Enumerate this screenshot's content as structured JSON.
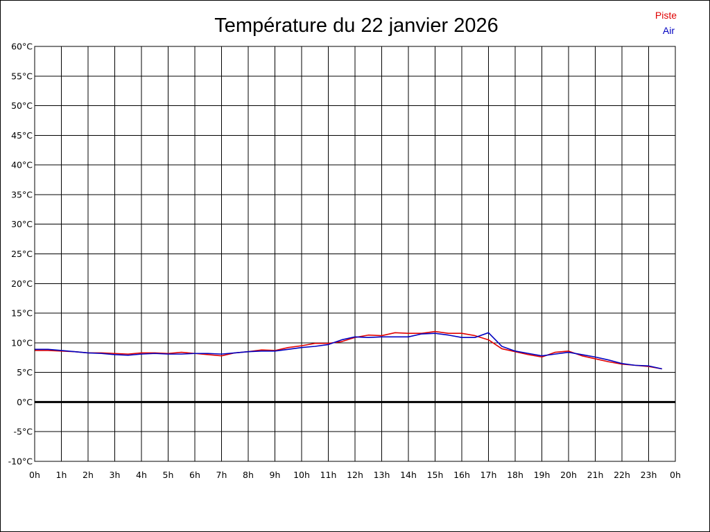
{
  "chart_data": {
    "type": "line",
    "title": "Température du 22 janvier 2026",
    "xlabel": "",
    "ylabel": "",
    "xlim": [
      0,
      24
    ],
    "ylim": [
      -10,
      60
    ],
    "x_ticks": [
      0,
      1,
      2,
      3,
      4,
      5,
      6,
      7,
      8,
      9,
      10,
      11,
      12,
      13,
      14,
      15,
      16,
      17,
      18,
      19,
      20,
      21,
      22,
      23,
      24
    ],
    "x_tick_labels": [
      "0h",
      "1h",
      "2h",
      "3h",
      "4h",
      "5h",
      "6h",
      "7h",
      "8h",
      "9h",
      "10h",
      "11h",
      "12h",
      "13h",
      "14h",
      "15h",
      "16h",
      "17h",
      "18h",
      "19h",
      "20h",
      "21h",
      "22h",
      "23h",
      "0h"
    ],
    "y_ticks": [
      -10,
      -5,
      0,
      5,
      10,
      15,
      20,
      25,
      30,
      35,
      40,
      45,
      50,
      55,
      60
    ],
    "y_tick_labels": [
      "-10°C",
      "-5°C",
      "0°C",
      "5°C",
      "10°C",
      "15°C",
      "20°C",
      "25°C",
      "30°C",
      "35°C",
      "40°C",
      "45°C",
      "50°C",
      "55°C",
      "60°C"
    ],
    "grid": true,
    "zero_line": true,
    "legend_position": "top-right",
    "x": [
      0,
      0.5,
      1,
      1.5,
      2,
      2.5,
      3,
      3.5,
      4,
      4.5,
      5,
      5.5,
      6,
      6.5,
      7,
      7.5,
      8,
      8.5,
      9,
      9.5,
      10,
      10.5,
      11,
      11.5,
      12,
      12.5,
      13,
      13.5,
      14,
      14.5,
      15,
      15.5,
      16,
      16.5,
      17,
      17.5,
      18,
      18.5,
      19,
      19.5,
      20,
      20.5,
      21,
      21.5,
      22,
      22.5,
      23,
      23.5
    ],
    "series": [
      {
        "name": "Piste",
        "color": "#e00000",
        "values": [
          8.7,
          8.7,
          8.6,
          8.5,
          8.3,
          8.3,
          8.2,
          8.1,
          8.3,
          8.3,
          8.2,
          8.4,
          8.2,
          8.0,
          7.8,
          8.3,
          8.5,
          8.8,
          8.7,
          9.2,
          9.5,
          9.9,
          9.9,
          10.2,
          10.9,
          11.3,
          11.2,
          11.7,
          11.6,
          11.6,
          11.9,
          11.6,
          11.6,
          11.2,
          10.5,
          9.0,
          8.5,
          8.0,
          7.6,
          8.4,
          8.6,
          7.8,
          7.3,
          6.8,
          6.4,
          6.2,
          6.0,
          5.6
        ]
      },
      {
        "name": "Air",
        "color": "#0000c0",
        "values": [
          8.9,
          8.9,
          8.7,
          8.5,
          8.3,
          8.2,
          8.0,
          7.9,
          8.1,
          8.2,
          8.1,
          8.1,
          8.2,
          8.2,
          8.1,
          8.3,
          8.5,
          8.6,
          8.6,
          8.9,
          9.2,
          9.4,
          9.7,
          10.5,
          11.0,
          10.9,
          11.0,
          11.0,
          11.0,
          11.5,
          11.6,
          11.3,
          10.9,
          10.9,
          11.7,
          9.4,
          8.6,
          8.2,
          7.8,
          8.1,
          8.4,
          8.0,
          7.6,
          7.1,
          6.5,
          6.2,
          6.1,
          5.6
        ]
      }
    ]
  }
}
